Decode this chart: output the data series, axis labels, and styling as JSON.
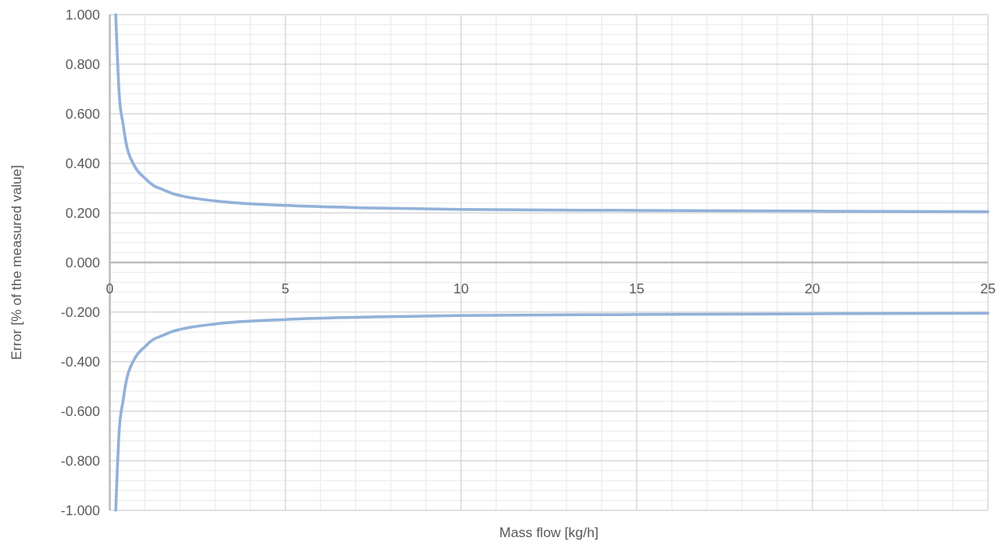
{
  "chart_data": {
    "type": "line",
    "xlabel": "Mass flow [kg/h]",
    "ylabel": "Error [% of the measured value]",
    "xlim": [
      0,
      25
    ],
    "xticks": [
      0,
      5,
      10,
      15,
      20,
      25
    ],
    "ylim": [
      -1,
      1
    ],
    "yticks": [
      {
        "value": -1,
        "label": "-1.000"
      },
      {
        "value": -0.8,
        "label": "-0.800"
      },
      {
        "value": -0.6,
        "label": "-0.600"
      },
      {
        "value": -0.4,
        "label": "-0.400"
      },
      {
        "value": -0.2,
        "label": "-0.200"
      },
      {
        "value": 0,
        "label": "0.000"
      },
      {
        "value": 0.2,
        "label": "0.200"
      },
      {
        "value": 0.4,
        "label": "0.400"
      },
      {
        "value": 0.6,
        "label": "0.600"
      },
      {
        "value": 0.8,
        "label": "0.800"
      },
      {
        "value": 1,
        "label": "1.000"
      }
    ],
    "grid": true,
    "marker": "none",
    "line_style": "solid",
    "series": [
      {
        "color": "#92b1da",
        "x": [
          0.17,
          0.27,
          0.38,
          0.46,
          0.7,
          1,
          1.25,
          1.5,
          1.75,
          2,
          3,
          5,
          7.5,
          10,
          15,
          20,
          25
        ],
        "values": [
          1.0,
          0.675,
          0.557,
          0.485,
          0.39,
          0.34,
          0.31,
          0.295,
          0.28,
          0.27,
          0.248,
          0.23,
          0.22,
          0.214,
          0.21,
          0.207,
          0.205
        ]
      },
      {
        "color": "#92b1da",
        "x": [
          0.17,
          0.27,
          0.38,
          0.46,
          0.7,
          1,
          1.25,
          1.5,
          1.75,
          2,
          3,
          5,
          7.5,
          10,
          15,
          20,
          25
        ],
        "values": [
          -1.0,
          -0.675,
          -0.557,
          -0.485,
          -0.39,
          -0.34,
          -0.31,
          -0.295,
          -0.28,
          -0.27,
          -0.248,
          -0.23,
          -0.22,
          -0.214,
          -0.21,
          -0.207,
          -0.205
        ]
      }
    ]
  }
}
